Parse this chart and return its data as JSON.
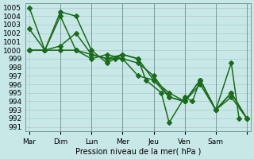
{
  "background_color": "#c8e8e8",
  "grid_color": "#b0c8c8",
  "line_color": "#1a6b1a",
  "xlabel": "Pression niveau de la mer( hPa )",
  "xtick_labels": [
    "Mar",
    "Dim",
    "Lun",
    "Mer",
    "Jeu",
    "Ven",
    "Sam"
  ],
  "ylim": [
    990.5,
    1005.5
  ],
  "yticks": [
    991,
    992,
    993,
    994,
    995,
    996,
    997,
    998,
    999,
    1000,
    1001,
    1002,
    1003,
    1004,
    1005
  ],
  "series": [
    {
      "x": [
        0,
        2,
        4,
        6,
        8,
        10,
        11,
        12,
        14,
        15,
        17,
        18,
        20,
        21,
        22,
        24,
        26,
        27
      ],
      "y": [
        1005.0,
        1000.0,
        1004.5,
        1004.0,
        1000.0,
        998.5,
        999.0,
        999.5,
        999.0,
        996.5,
        995.0,
        991.5,
        994.5,
        994.0,
        996.5,
        993.0,
        998.5,
        992.0
      ]
    },
    {
      "x": [
        0,
        2,
        4,
        6,
        8,
        10,
        12,
        14,
        16,
        18,
        20,
        22,
        24,
        26,
        28
      ],
      "y": [
        1002.5,
        1000.0,
        1004.0,
        1000.0,
        999.0,
        999.5,
        999.0,
        997.0,
        996.5,
        995.0,
        994.0,
        996.0,
        993.0,
        994.5,
        992.0
      ]
    },
    {
      "x": [
        0,
        2,
        4,
        6,
        8,
        10,
        12,
        14,
        16,
        18,
        20,
        22,
        24,
        26,
        28
      ],
      "y": [
        1000.0,
        1000.0,
        1000.5,
        1002.0,
        999.5,
        999.0,
        999.5,
        999.0,
        996.5,
        994.5,
        994.0,
        996.5,
        993.0,
        995.0,
        992.0
      ]
    },
    {
      "x": [
        0,
        2,
        4,
        6,
        8,
        10,
        12,
        14,
        16,
        18,
        20,
        22,
        24,
        26,
        28
      ],
      "y": [
        1000.0,
        1000.0,
        1000.0,
        1000.0,
        999.5,
        999.0,
        999.0,
        998.5,
        997.0,
        994.5,
        994.0,
        996.5,
        993.0,
        995.0,
        992.0
      ]
    }
  ],
  "day_positions": [
    0,
    4,
    8,
    12,
    16,
    20,
    24,
    28
  ],
  "marker": "D",
  "markersize": 3,
  "linewidth": 1.1
}
